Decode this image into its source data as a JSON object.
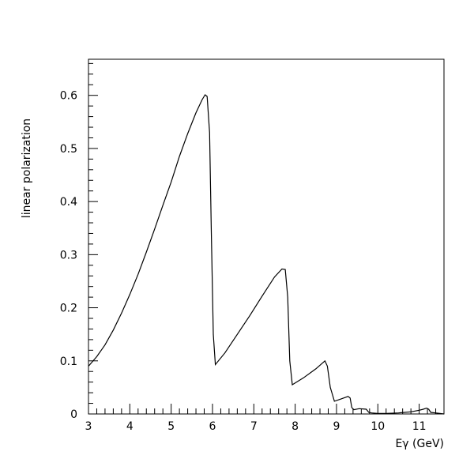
{
  "chart_data": {
    "type": "line",
    "title": "",
    "xlabel": "Eγ (GeV)",
    "ylabel": "linear polarization",
    "xlim": [
      3,
      11.6
    ],
    "ylim": [
      0,
      0.668
    ],
    "x_ticks": [
      3,
      4,
      5,
      6,
      7,
      8,
      9,
      10,
      11
    ],
    "y_ticks": [
      0,
      0.1,
      0.2,
      0.3,
      0.4,
      0.5,
      0.6
    ],
    "y_tick_labels": [
      "0",
      "0.1",
      "0.2",
      "0.3",
      "0.4",
      "0.5",
      "0.6"
    ],
    "grid": false,
    "series": [
      {
        "name": "",
        "x": [
          3.0,
          3.2,
          3.4,
          3.6,
          3.8,
          4.0,
          4.2,
          4.4,
          4.6,
          4.8,
          5.0,
          5.2,
          5.4,
          5.6,
          5.75,
          5.82,
          5.87,
          5.93,
          5.97,
          6.02,
          6.07,
          6.3,
          6.6,
          6.9,
          7.2,
          7.5,
          7.68,
          7.76,
          7.82,
          7.87,
          7.93,
          8.2,
          8.5,
          8.72,
          8.78,
          8.85,
          8.95,
          9.1,
          9.28,
          9.33,
          9.37,
          9.42,
          9.55,
          9.72,
          9.78,
          9.85,
          10.0,
          10.2,
          10.5,
          10.8,
          11.0,
          11.1,
          11.18,
          11.23,
          11.28,
          11.4,
          11.6
        ],
        "y": [
          0.09,
          0.108,
          0.13,
          0.158,
          0.19,
          0.225,
          0.263,
          0.305,
          0.348,
          0.393,
          0.437,
          0.485,
          0.528,
          0.567,
          0.592,
          0.601,
          0.598,
          0.53,
          0.35,
          0.15,
          0.093,
          0.115,
          0.15,
          0.185,
          0.222,
          0.258,
          0.273,
          0.272,
          0.22,
          0.1,
          0.055,
          0.068,
          0.085,
          0.1,
          0.09,
          0.05,
          0.024,
          0.028,
          0.033,
          0.03,
          0.012,
          0.008,
          0.01,
          0.009,
          0.003,
          0.002,
          0.001,
          0.001,
          0.002,
          0.004,
          0.007,
          0.009,
          0.011,
          0.009,
          0.003,
          0.002,
          0.0
        ]
      }
    ]
  }
}
